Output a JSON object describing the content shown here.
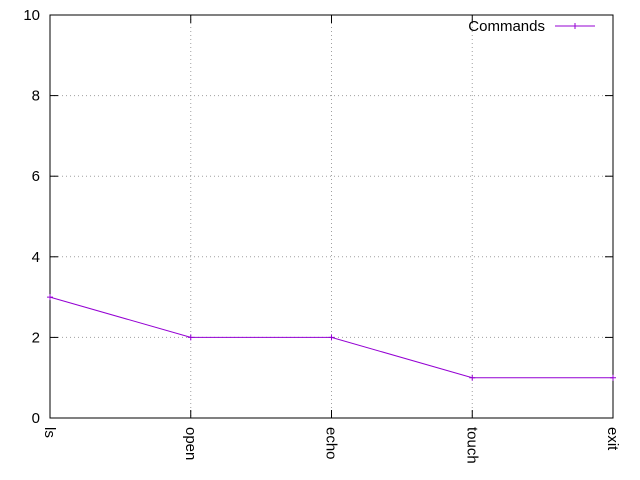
{
  "chart_data": {
    "type": "line",
    "categories": [
      "ls",
      "open",
      "echo",
      "touch",
      "exit"
    ],
    "series": [
      {
        "name": "Commands",
        "values": [
          3,
          2,
          2,
          1,
          1
        ],
        "color": "#9400d3"
      }
    ],
    "ylim": [
      0,
      10
    ],
    "yticks": [
      0,
      2,
      4,
      6,
      8,
      10
    ],
    "grid": true,
    "legend": "top-right",
    "marker": "plus"
  }
}
